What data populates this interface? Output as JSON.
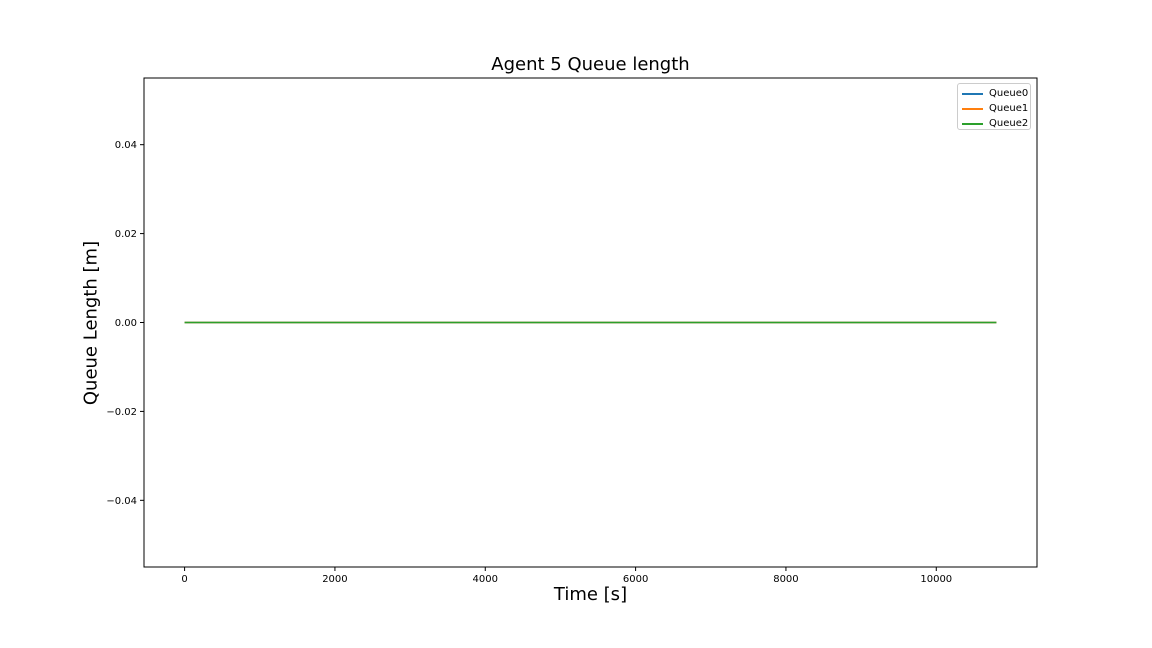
{
  "chart_data": {
    "type": "line",
    "title": "Agent 5 Queue length",
    "xlabel": "Time [s]",
    "ylabel": "Queue Length [m]",
    "xlim": [
      -540,
      11340
    ],
    "ylim": [
      -0.055,
      0.055
    ],
    "xticks": [
      0,
      2000,
      4000,
      6000,
      8000,
      10000
    ],
    "xtick_labels": [
      "0",
      "2000",
      "4000",
      "6000",
      "8000",
      "10000"
    ],
    "yticks": [
      -0.04,
      -0.02,
      0.0,
      0.02,
      0.04
    ],
    "ytick_labels": [
      "−0.04",
      "−0.02",
      "0.00",
      "0.02",
      "0.04"
    ],
    "grid": false,
    "legend_position": "top-right",
    "x": [
      0,
      10800
    ],
    "series": [
      {
        "name": "Queue0",
        "color": "#1f77b4",
        "values": [
          0,
          0
        ]
      },
      {
        "name": "Queue1",
        "color": "#ff7f0e",
        "values": [
          0,
          0
        ]
      },
      {
        "name": "Queue2",
        "color": "#2ca02c",
        "values": [
          0,
          0
        ]
      }
    ]
  }
}
